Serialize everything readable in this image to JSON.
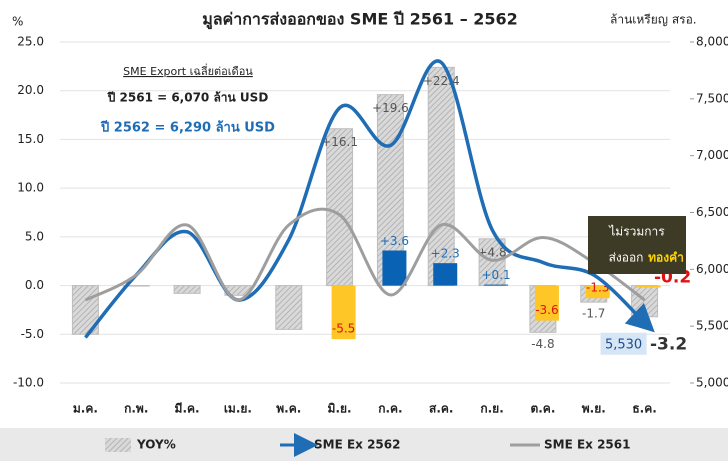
{
  "chart_data": {
    "type": "bar",
    "title": "มูลค่าการส่งออกของ SME ปี 2561 – 2562",
    "y_label": "%",
    "y2_label": "ล้านเหรียญ สรอ.",
    "categories": [
      "ม.ค.",
      "ก.พ.",
      "มี.ค.",
      "เม.ย.",
      "พ.ค.",
      "มิ.ย.",
      "ก.ค.",
      "ส.ค.",
      "ก.ย.",
      "ต.ค.",
      "พ.ย.",
      "ธ.ค."
    ],
    "ylim": [
      -10,
      25
    ],
    "yticks": [
      {
        "value": -10,
        "label": "-10.0"
      },
      {
        "value": -5,
        "label": "-5.0"
      },
      {
        "value": 0,
        "label": "0.0"
      },
      {
        "value": 5,
        "label": "5.0"
      },
      {
        "value": 10,
        "label": "10.0"
      },
      {
        "value": 15,
        "label": "15.0"
      },
      {
        "value": 20,
        "label": "20.0"
      },
      {
        "value": 25,
        "label": "25.0"
      }
    ],
    "y2lim": [
      5000,
      8000
    ],
    "y2ticks": [
      {
        "value": 5000,
        "label": "5,000"
      },
      {
        "value": 5500,
        "label": "5,500"
      },
      {
        "value": 6000,
        "label": "6,000"
      },
      {
        "value": 6500,
        "label": "6,500"
      },
      {
        "value": 7000,
        "label": "7,000"
      },
      {
        "value": 7500,
        "label": "7,500"
      },
      {
        "value": 8000,
        "label": "8,000"
      }
    ],
    "grid": true,
    "legend": "bottom",
    "series": [
      {
        "name": "YOY%",
        "kind": "bar",
        "color": "#bdbdbd",
        "values": [
          -5.0,
          0,
          -0.8,
          -1.0,
          -4.5,
          16.1,
          19.6,
          22.4,
          4.8,
          -4.8,
          -1.7,
          -3.2
        ],
        "value_labels": [
          null,
          null,
          null,
          null,
          null,
          "+16.1",
          "+19.6",
          "+22.4",
          "+4.8",
          "-4.8",
          "-1.7",
          "-3.2"
        ]
      },
      {
        "kind": "bar",
        "colors": [
          null,
          null,
          null,
          null,
          null,
          "#ffc627",
          "#0a62b5",
          "#0a62b5",
          "#0a62b5",
          "#ffc627",
          "#ffc627",
          "#ffc627"
        ],
        "values": [
          null,
          null,
          null,
          null,
          null,
          -5.5,
          3.6,
          2.3,
          0.1,
          -3.6,
          -1.3,
          -0.2
        ],
        "value_labels": [
          null,
          null,
          null,
          null,
          null,
          "-5.5",
          "+3.6",
          "+2.3",
          "+0.1",
          "-3.6",
          "-1.3",
          "-0.2"
        ]
      },
      {
        "name": "SME Ex 2562",
        "kind": "line",
        "axis": "y2",
        "color": "#1f6db5",
        "values": [
          5400,
          5950,
          6330,
          5730,
          6260,
          7420,
          7090,
          7820,
          6350,
          6060,
          5950,
          5530
        ],
        "value_labels": [
          null,
          null,
          null,
          null,
          null,
          null,
          null,
          null,
          null,
          null,
          null,
          "5,530"
        ]
      },
      {
        "name": "SME Ex 2561",
        "kind": "line",
        "axis": "y2",
        "color": "#9e9e9e",
        "values": [
          5730,
          5950,
          6390,
          5730,
          6390,
          6480,
          5775,
          6390,
          6080,
          6280,
          6060,
          5730
        ]
      }
    ],
    "annotations": [
      "SME Export เฉลี่ยต่อเดือน",
      "ปี 2561 = 6,070 ล้าน USD",
      "ปี 2562 = 6,290 ล้าน USD",
      "ไม่รวมการ",
      "ส่งออก",
      "ทองคำ"
    ]
  }
}
